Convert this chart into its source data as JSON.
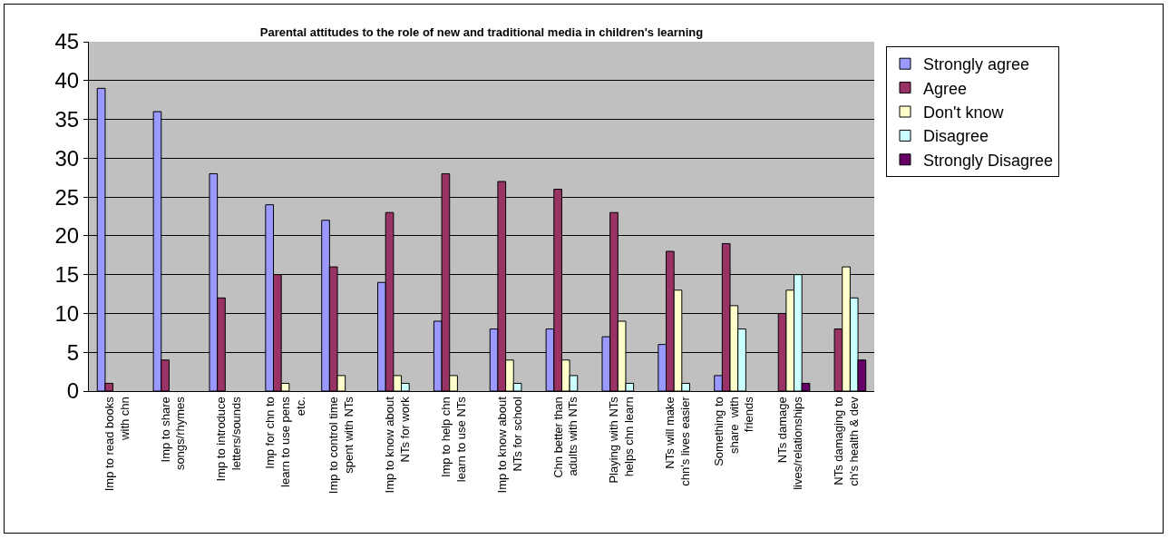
{
  "chart_data": {
    "type": "bar",
    "title": "Parental attitudes to the role of new and traditional media in children's learning",
    "categories": [
      "Imp to read books\nwith chn",
      "Imp to share\nsongs/rhymes",
      "Imp to introduce\nletters/sounds",
      "Imp for chn to\nlearn to use pens\netc.",
      "Imp to control time\nspent with NTs",
      "Imp to know about\nNTs for work",
      "Imp to help chn\nlearn to use NTs",
      "Imp to know about\nNTs for school",
      "Chn better than\nadults with NTs",
      "Playing with NTs\nhelps chn learn",
      "NTs will make\nchn's lives easier",
      "Something to\nshare  with\nfriends",
      "NTs damage\nlives/relationships",
      "NTs damaging to\nch's health & dev"
    ],
    "series": [
      {
        "name": "Strongly agree",
        "color": "#9999ff",
        "values": [
          39,
          36,
          28,
          24,
          22,
          14,
          9,
          8,
          8,
          7,
          6,
          2,
          null,
          null
        ]
      },
      {
        "name": "Agree",
        "color": "#993366",
        "values": [
          1,
          4,
          12,
          15,
          16,
          23,
          28,
          27,
          26,
          23,
          18,
          19,
          10,
          8
        ]
      },
      {
        "name": "Don't know",
        "color": "#ffffcc",
        "values": [
          null,
          null,
          null,
          1,
          2,
          2,
          2,
          4,
          4,
          9,
          13,
          11,
          13,
          16
        ]
      },
      {
        "name": "Disagree",
        "color": "#ccffff",
        "values": [
          null,
          null,
          null,
          null,
          null,
          1,
          null,
          1,
          2,
          1,
          1,
          8,
          15,
          12
        ]
      },
      {
        "name": "Strongly Disagree",
        "color": "#660066",
        "values": [
          null,
          null,
          null,
          null,
          null,
          null,
          null,
          null,
          null,
          null,
          null,
          null,
          1,
          4
        ]
      }
    ],
    "ylim": [
      0,
      45
    ],
    "yticks": [
      0,
      5,
      10,
      15,
      20,
      25,
      30,
      35,
      40,
      45
    ],
    "grid": "y",
    "legend": "right"
  }
}
